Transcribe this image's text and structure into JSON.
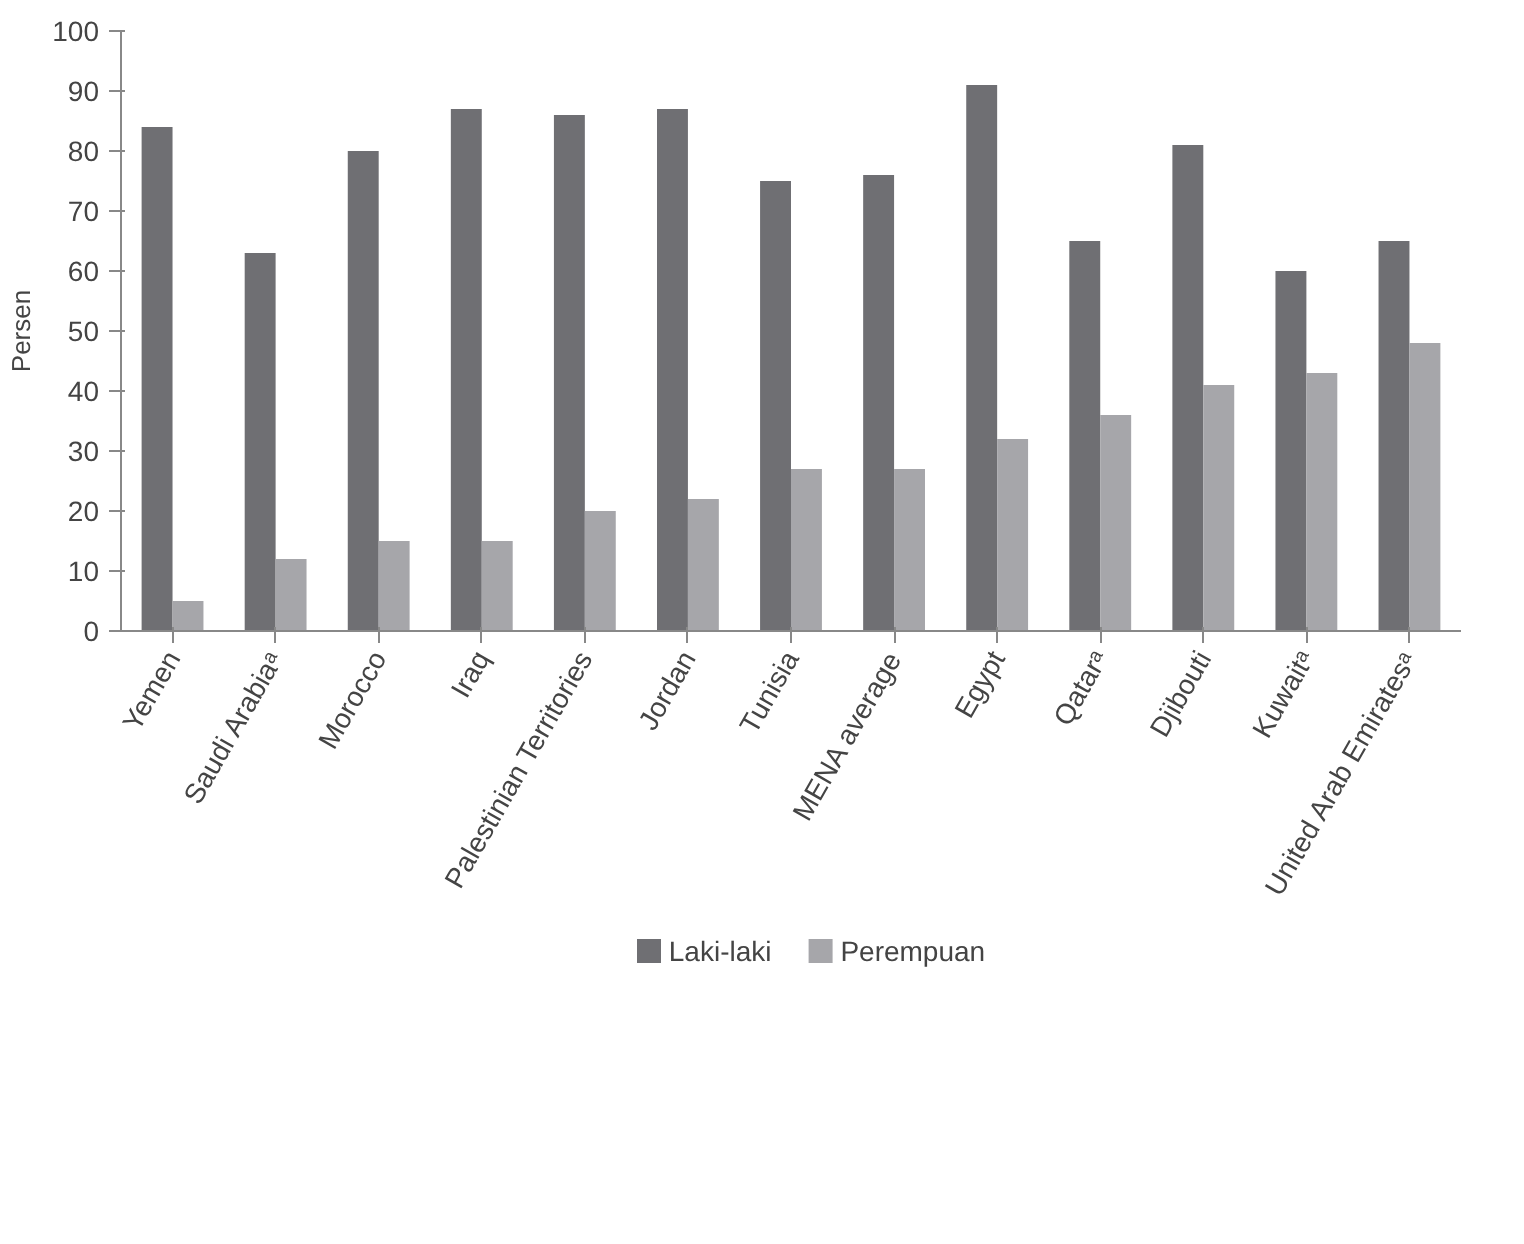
{
  "chart_data": {
    "type": "bar",
    "ylabel": "Persen",
    "categories": [
      "Yemen",
      "Saudi Arabiaᵃ",
      "Morocco",
      "Iraq",
      "Palestinian Territories",
      "Jordan",
      "Tunisia",
      "MENA average",
      "Egypt",
      "Qatarᵃ",
      "Djibouti",
      "Kuwaitᵃ",
      "United Arab Emiratesᵃ"
    ],
    "series": [
      {
        "name": "Laki-laki",
        "color": "#6f6f73",
        "values": [
          84,
          63,
          80,
          87,
          86,
          87,
          75,
          76,
          91,
          65,
          81,
          60,
          65
        ]
      },
      {
        "name": "Perempuan",
        "color": "#a6a6aa",
        "values": [
          5,
          12,
          15,
          15,
          20,
          22,
          27,
          27,
          32,
          36,
          41,
          43,
          48
        ]
      }
    ],
    "ylim": [
      0,
      100
    ],
    "yticks": [
      0,
      10,
      20,
      30,
      40,
      50,
      60,
      70,
      80,
      90,
      100
    ],
    "grid": false,
    "legend": "bottom"
  }
}
